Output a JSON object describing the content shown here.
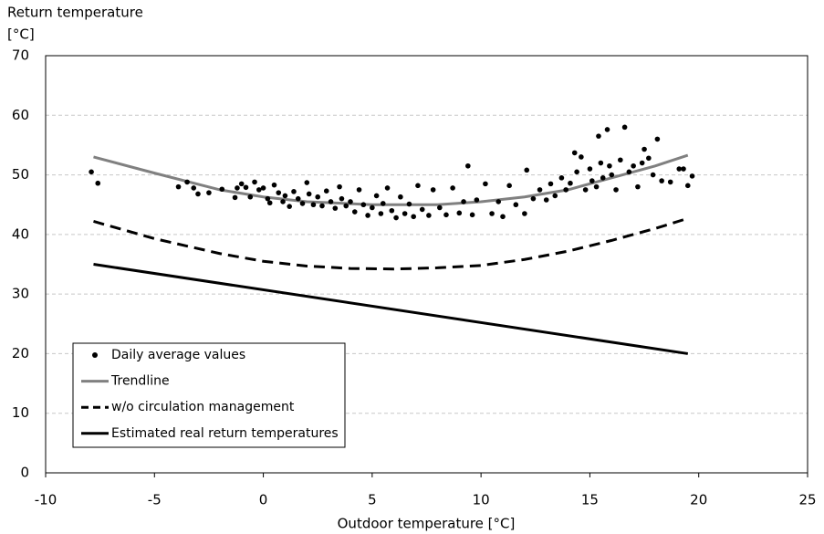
{
  "chart_data": {
    "type": "scatter",
    "y_label_lines": [
      "Return temperature",
      "[°C]"
    ],
    "x_label": "Outdoor temperature [°C]",
    "xlim": [
      -10,
      25
    ],
    "xticks": [
      -10,
      -5,
      0,
      5,
      10,
      15,
      20,
      25
    ],
    "ylim": [
      0,
      70
    ],
    "yticks": [
      0,
      10,
      20,
      30,
      40,
      50,
      60,
      70
    ],
    "grid": true,
    "legend": "lower left",
    "series": [
      {
        "name": "Daily average values",
        "type": "scatter",
        "color": "#000000",
        "x": [
          -7.9,
          -7.6,
          -3.9,
          -3.5,
          -3.2,
          -3,
          -2.5,
          -1.9,
          -1.3,
          -1.2,
          -1,
          -0.8,
          -0.6,
          -0.4,
          -0.2,
          0,
          0.2,
          0.3,
          0.5,
          0.7,
          0.9,
          1,
          1.2,
          1.4,
          1.6,
          1.8,
          2,
          2.1,
          2.3,
          2.5,
          2.7,
          2.9,
          3.1,
          3.3,
          3.5,
          3.6,
          3.8,
          4,
          4.2,
          4.4,
          4.6,
          4.8,
          5,
          5.2,
          5.4,
          5.5,
          5.7,
          5.9,
          6.1,
          6.3,
          6.5,
          6.7,
          6.9,
          7.1,
          7.3,
          7.6,
          7.8,
          8.1,
          8.4,
          8.7,
          9,
          9.2,
          9.4,
          9.6,
          9.8,
          10.2,
          10.5,
          10.8,
          11,
          11.3,
          11.6,
          12,
          12.1,
          12.4,
          12.7,
          13,
          13.2,
          13.4,
          13.7,
          13.9,
          14.1,
          14.3,
          14.4,
          14.6,
          14.8,
          15,
          15.1,
          15.3,
          15.4,
          15.5,
          15.6,
          15.8,
          15.9,
          16,
          16.2,
          16.4,
          16.6,
          16.8,
          17,
          17.2,
          17.4,
          17.5,
          17.7,
          17.9,
          18.1,
          18.3,
          18.7,
          19.1,
          19.3,
          19.5,
          19.7
        ],
        "values": [
          50.5,
          48.6,
          48,
          48.8,
          47.8,
          46.8,
          47,
          47.6,
          46.2,
          47.8,
          48.5,
          47.9,
          46.3,
          48.8,
          47.5,
          47.8,
          46,
          45.3,
          48.3,
          47,
          45.5,
          46.5,
          44.7,
          47.2,
          46,
          45.2,
          48.7,
          46.8,
          45,
          46.3,
          44.8,
          47.3,
          45.5,
          44.4,
          48,
          46,
          44.8,
          45.5,
          43.8,
          47.5,
          45,
          43.2,
          44.5,
          46.5,
          43.5,
          45.2,
          47.8,
          44,
          42.8,
          46.3,
          43.5,
          45.1,
          43,
          48.2,
          44.2,
          43.2,
          47.5,
          44.5,
          43.3,
          47.8,
          43.6,
          45.5,
          51.5,
          43.3,
          45.8,
          48.5,
          43.5,
          45.5,
          43,
          48.2,
          45,
          43.5,
          50.8,
          46,
          47.5,
          45.8,
          48.5,
          46.5,
          49.5,
          47.5,
          48.6,
          53.7,
          50.5,
          53,
          47.5,
          51,
          49,
          48,
          56.5,
          52,
          49.5,
          57.6,
          51.5,
          50,
          47.5,
          52.5,
          58,
          50.5,
          51.5,
          48,
          52,
          54.3,
          52.8,
          50,
          56,
          49,
          48.8,
          51,
          51,
          48.2,
          49.8
        ]
      },
      {
        "name": "Trendline",
        "type": "line",
        "color": "#808080",
        "width": 3,
        "dashed": false,
        "x": [
          -7.8,
          -5,
          -2,
          0,
          2,
          5,
          8,
          10,
          12,
          14,
          16,
          18,
          19.5
        ],
        "values": [
          53,
          50.3,
          47.5,
          46.3,
          45.5,
          45,
          45,
          45.5,
          46.3,
          47.5,
          49.5,
          51.5,
          53.3
        ]
      },
      {
        "name": "w/o circulation management",
        "type": "line",
        "color": "#000000",
        "width": 3,
        "dashed": true,
        "x": [
          -7.8,
          -5,
          -2,
          0,
          2,
          4,
          6,
          8,
          10,
          12,
          14,
          16,
          18,
          19.5
        ],
        "values": [
          42.2,
          39.3,
          36.8,
          35.5,
          34.7,
          34.3,
          34.2,
          34.4,
          34.8,
          35.8,
          37.2,
          39,
          41,
          42.7
        ]
      },
      {
        "name": "Estimated real return temperatures",
        "type": "line",
        "color": "#000000",
        "width": 3,
        "dashed": false,
        "x": [
          -7.8,
          19.5
        ],
        "values": [
          35,
          20
        ]
      }
    ]
  }
}
